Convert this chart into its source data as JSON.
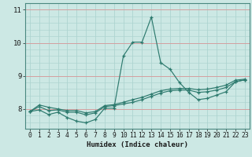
{
  "xlabel": "Humidex (Indice chaleur)",
  "bg_color": "#cce8e4",
  "line_color": "#2d7a6e",
  "grid_color": "#aed4d0",
  "grid_red": "#d4a0a0",
  "x_values": [
    0,
    1,
    2,
    3,
    4,
    5,
    6,
    7,
    8,
    9,
    10,
    11,
    12,
    13,
    14,
    15,
    16,
    17,
    18,
    19,
    20,
    21,
    22,
    23
  ],
  "line1": [
    7.92,
    7.97,
    7.83,
    7.9,
    7.74,
    7.63,
    7.58,
    7.68,
    8.02,
    8.02,
    9.6,
    10.02,
    10.02,
    10.78,
    9.4,
    9.2,
    8.8,
    8.5,
    8.28,
    8.32,
    8.42,
    8.52,
    8.82,
    8.88
  ],
  "line2": [
    7.92,
    8.07,
    7.95,
    7.97,
    7.9,
    7.9,
    7.82,
    7.88,
    8.07,
    8.1,
    8.15,
    8.2,
    8.28,
    8.38,
    8.48,
    8.55,
    8.57,
    8.57,
    8.5,
    8.52,
    8.57,
    8.65,
    8.82,
    8.88
  ],
  "line3": [
    7.92,
    8.12,
    8.05,
    8.0,
    7.95,
    7.95,
    7.88,
    7.92,
    8.1,
    8.13,
    8.2,
    8.28,
    8.35,
    8.45,
    8.55,
    8.6,
    8.62,
    8.62,
    8.58,
    8.6,
    8.65,
    8.72,
    8.87,
    8.9
  ],
  "ylim": [
    7.4,
    11.2
  ],
  "xlim": [
    -0.5,
    23.5
  ],
  "yticks": [
    8,
    9,
    10,
    11
  ],
  "xticks": [
    0,
    1,
    2,
    3,
    4,
    5,
    6,
    7,
    8,
    9,
    10,
    11,
    12,
    13,
    14,
    15,
    16,
    17,
    18,
    19,
    20,
    21,
    22,
    23
  ]
}
